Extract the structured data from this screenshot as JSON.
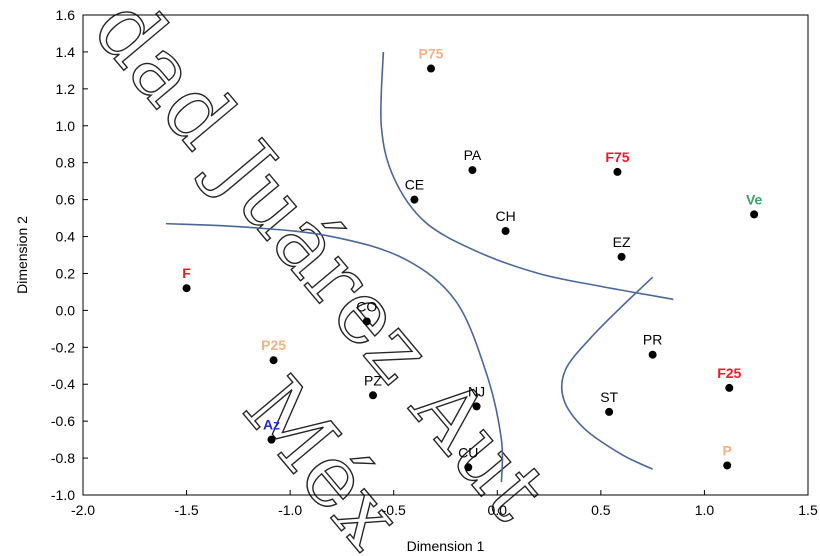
{
  "chart_data": {
    "type": "scatter",
    "xlabel": "Dimension 1",
    "ylabel": "Dimension 2",
    "xlim": [
      -2.0,
      1.5
    ],
    "ylim": [
      -1.0,
      1.6
    ],
    "x_ticks": [
      "-2.0",
      "-1.5",
      "-1.0",
      "-0.5",
      "0.0",
      "0.5",
      "1.0",
      "1.5"
    ],
    "y_ticks": [
      "1.6",
      "1.4",
      "1.2",
      "1.0",
      "0.8",
      "0.6",
      "0.4",
      "0.2",
      "0.0",
      "-0.2",
      "-0.4",
      "-0.6",
      "-0.8",
      "-1.0"
    ],
    "grid": false,
    "points": [
      {
        "label": "P75",
        "x": -0.32,
        "y": 1.31,
        "color": "#f4b183"
      },
      {
        "label": "PA",
        "x": -0.12,
        "y": 0.76,
        "color": "#000000"
      },
      {
        "label": "F75",
        "x": 0.58,
        "y": 0.75,
        "color": "#ee1c25"
      },
      {
        "label": "CE",
        "x": -0.4,
        "y": 0.6,
        "color": "#000000"
      },
      {
        "label": "Ve",
        "x": 1.24,
        "y": 0.52,
        "color": "#3aa36b"
      },
      {
        "label": "CH",
        "x": 0.04,
        "y": 0.43,
        "color": "#000000"
      },
      {
        "label": "EZ",
        "x": 0.6,
        "y": 0.29,
        "color": "#000000"
      },
      {
        "label": "F",
        "x": -1.5,
        "y": 0.12,
        "color": "#ee1c25"
      },
      {
        "label": "CO",
        "x": -0.63,
        "y": -0.06,
        "color": "#000000"
      },
      {
        "label": "PR",
        "x": 0.75,
        "y": -0.24,
        "color": "#000000"
      },
      {
        "label": "P25",
        "x": -1.08,
        "y": -0.27,
        "color": "#f4b183"
      },
      {
        "label": "F25",
        "x": 1.12,
        "y": -0.42,
        "color": "#ee1c25"
      },
      {
        "label": "PZ",
        "x": -0.6,
        "y": -0.46,
        "color": "#000000"
      },
      {
        "label": "NJ",
        "x": -0.1,
        "y": -0.52,
        "color": "#000000"
      },
      {
        "label": "ST",
        "x": 0.54,
        "y": -0.55,
        "color": "#000000"
      },
      {
        "label": "Az",
        "x": -1.09,
        "y": -0.7,
        "color": "#1f2bd6"
      },
      {
        "label": "CU",
        "x": -0.14,
        "y": -0.85,
        "color": "#000000"
      },
      {
        "label": "P",
        "x": 1.11,
        "y": -0.84,
        "color": "#f4b183"
      }
    ],
    "curves": [
      {
        "name": "",
        "color": "#4a6799",
        "points": [
          [
            -0.55,
            1.4
          ],
          [
            -0.56,
            1.0
          ],
          [
            -0.5,
            0.72
          ],
          [
            -0.35,
            0.48
          ],
          [
            -0.1,
            0.32
          ],
          [
            0.2,
            0.2
          ],
          [
            0.5,
            0.13
          ],
          [
            0.85,
            0.06
          ]
        ]
      },
      {
        "name": "",
        "color": "#4a6799",
        "points": [
          [
            -1.6,
            0.47
          ],
          [
            -1.2,
            0.45
          ],
          [
            -0.8,
            0.4
          ],
          [
            -0.45,
            0.28
          ],
          [
            -0.2,
            0.05
          ],
          [
            -0.05,
            -0.35
          ],
          [
            0.02,
            -0.7
          ],
          [
            0.02,
            -0.93
          ]
        ]
      },
      {
        "name": "",
        "color": "#4a6799",
        "points": [
          [
            0.75,
            0.18
          ],
          [
            0.6,
            0.02
          ],
          [
            0.45,
            -0.15
          ],
          [
            0.33,
            -0.32
          ],
          [
            0.32,
            -0.48
          ],
          [
            0.42,
            -0.64
          ],
          [
            0.6,
            -0.78
          ],
          [
            0.75,
            -0.86
          ]
        ]
      }
    ]
  },
  "watermark": {
    "line1": "dad Juárez Aut",
    "line2": "Méx"
  }
}
